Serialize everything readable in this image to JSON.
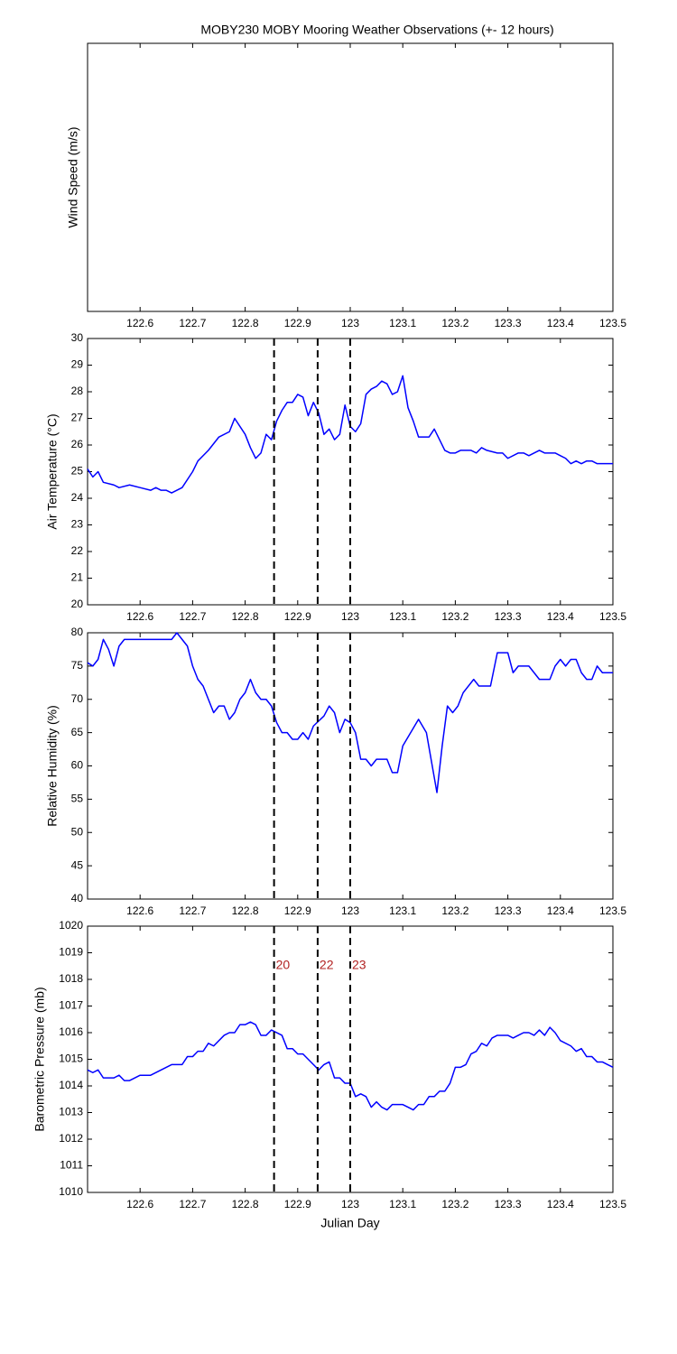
{
  "chart_data": [
    {
      "type": "line",
      "title": "MOBY230 MOBY Mooring Weather Observations (+- 12 hours)",
      "ylabel": "Wind Speed (m/s)",
      "xlim": [
        122.5,
        123.5
      ],
      "xticks": [
        122.6,
        122.7,
        122.8,
        122.9,
        123,
        123.1,
        123.2,
        123.3,
        123.4,
        123.5
      ],
      "series": []
    },
    {
      "type": "line",
      "ylabel": "Air Temperature (°C)",
      "xlim": [
        122.5,
        123.5
      ],
      "xticks": [
        122.6,
        122.7,
        122.8,
        122.9,
        123,
        123.1,
        123.2,
        123.3,
        123.4,
        123.5
      ],
      "ylim": [
        20,
        30
      ],
      "yticks": [
        20,
        21,
        22,
        23,
        24,
        25,
        26,
        27,
        28,
        29,
        30
      ],
      "vlines": [
        122.855,
        122.938,
        123.0
      ],
      "series": [
        {
          "color": "#0000ff",
          "x": [
            122.5,
            122.51,
            122.52,
            122.53,
            122.55,
            122.56,
            122.58,
            122.6,
            122.62,
            122.63,
            122.64,
            122.65,
            122.66,
            122.68,
            122.7,
            122.71,
            122.73,
            122.75,
            122.77,
            122.78,
            122.8,
            122.81,
            122.82,
            122.83,
            122.84,
            122.85,
            122.86,
            122.87,
            122.88,
            122.89,
            122.9,
            122.91,
            122.92,
            122.93,
            122.94,
            122.95,
            122.96,
            122.97,
            122.98,
            122.99,
            123.0,
            123.01,
            123.02,
            123.03,
            123.04,
            123.05,
            123.06,
            123.07,
            123.08,
            123.09,
            123.1,
            123.11,
            123.12,
            123.13,
            123.15,
            123.16,
            123.17,
            123.18,
            123.19,
            123.2,
            123.21,
            123.23,
            123.24,
            123.25,
            123.26,
            123.28,
            123.29,
            123.3,
            123.32,
            123.33,
            123.34,
            123.36,
            123.37,
            123.39,
            123.4,
            123.41,
            123.42,
            123.43,
            123.44,
            123.45,
            123.46,
            123.47,
            123.49,
            123.5
          ],
          "values": [
            25.1,
            24.8,
            25.0,
            24.6,
            24.5,
            24.4,
            24.5,
            24.4,
            24.3,
            24.4,
            24.3,
            24.3,
            24.2,
            24.4,
            25.0,
            25.4,
            25.8,
            26.3,
            26.5,
            27.0,
            26.4,
            25.9,
            25.5,
            25.7,
            26.4,
            26.2,
            26.9,
            27.3,
            27.6,
            27.6,
            27.9,
            27.8,
            27.1,
            27.6,
            27.2,
            26.4,
            26.6,
            26.2,
            26.4,
            27.5,
            26.7,
            26.5,
            26.8,
            27.9,
            28.1,
            28.2,
            28.4,
            28.3,
            27.9,
            28.0,
            28.6,
            27.4,
            26.9,
            26.3,
            26.3,
            26.6,
            26.2,
            25.8,
            25.7,
            25.7,
            25.8,
            25.8,
            25.7,
            25.9,
            25.8,
            25.7,
            25.7,
            25.5,
            25.7,
            25.7,
            25.6,
            25.8,
            25.7,
            25.7,
            25.6,
            25.5,
            25.3,
            25.4,
            25.3,
            25.4,
            25.4,
            25.3,
            25.3,
            25.3
          ]
        }
      ]
    },
    {
      "type": "line",
      "ylabel": "Relative Humidity (%)",
      "xlim": [
        122.5,
        123.5
      ],
      "xticks": [
        122.6,
        122.7,
        122.8,
        122.9,
        123,
        123.1,
        123.2,
        123.3,
        123.4,
        123.5
      ],
      "ylim": [
        40,
        80
      ],
      "yticks": [
        40,
        45,
        50,
        55,
        60,
        65,
        70,
        75,
        80
      ],
      "vlines": [
        122.855,
        122.938,
        123.0
      ],
      "series": [
        {
          "color": "#0000ff",
          "x": [
            122.5,
            122.51,
            122.52,
            122.53,
            122.54,
            122.55,
            122.56,
            122.57,
            122.6,
            122.63,
            122.66,
            122.67,
            122.69,
            122.7,
            122.71,
            122.72,
            122.74,
            122.75,
            122.76,
            122.77,
            122.78,
            122.79,
            122.8,
            122.81,
            122.82,
            122.83,
            122.84,
            122.85,
            122.86,
            122.87,
            122.88,
            122.89,
            122.9,
            122.91,
            122.92,
            122.93,
            122.95,
            122.96,
            122.97,
            122.98,
            122.99,
            123.0,
            123.01,
            123.02,
            123.03,
            123.04,
            123.05,
            123.07,
            123.08,
            123.09,
            123.1,
            123.13,
            123.145,
            123.165,
            123.175,
            123.185,
            123.195,
            123.205,
            123.215,
            123.235,
            123.245,
            123.267,
            123.28,
            123.3,
            123.31,
            123.32,
            123.34,
            123.36,
            123.38,
            123.39,
            123.4,
            123.41,
            123.42,
            123.43,
            123.44,
            123.45,
            123.46,
            123.47,
            123.48,
            123.5
          ],
          "values": [
            75.5,
            75,
            76,
            79,
            77.5,
            75,
            78,
            79,
            79,
            79,
            79,
            80,
            78,
            75,
            73,
            72,
            68,
            69,
            69,
            67,
            68,
            70,
            71,
            73,
            71,
            70,
            70,
            69,
            66.5,
            65,
            65,
            64,
            64,
            65,
            64,
            66,
            67.5,
            69,
            68,
            65,
            67,
            66.5,
            65,
            61,
            61,
            60,
            61,
            61,
            59,
            59,
            63,
            67,
            65,
            56,
            63,
            69,
            68,
            69,
            71,
            73,
            72,
            72,
            77,
            77,
            74,
            75,
            75,
            73,
            73,
            75,
            76,
            75,
            76,
            76,
            74,
            73,
            73,
            75,
            74,
            74
          ]
        }
      ]
    },
    {
      "type": "line",
      "ylabel": "Barometric Pressure (mb)",
      "xlabel": "Julian Day",
      "xlim": [
        122.5,
        123.5
      ],
      "xticks": [
        122.6,
        122.7,
        122.8,
        122.9,
        123,
        123.1,
        123.2,
        123.3,
        123.4,
        123.5
      ],
      "ylim": [
        1010,
        1020
      ],
      "yticks": [
        1010,
        1011,
        1012,
        1013,
        1014,
        1015,
        1016,
        1017,
        1018,
        1019,
        1020
      ],
      "vlines": [
        122.855,
        122.938,
        123.0
      ],
      "vline_labels": [
        "20",
        "22",
        "23"
      ],
      "series": [
        {
          "color": "#0000ff",
          "x": [
            122.5,
            122.51,
            122.52,
            122.53,
            122.55,
            122.56,
            122.57,
            122.58,
            122.6,
            122.62,
            122.64,
            122.66,
            122.68,
            122.69,
            122.7,
            122.71,
            122.72,
            122.73,
            122.74,
            122.76,
            122.77,
            122.78,
            122.79,
            122.8,
            122.81,
            122.82,
            122.83,
            122.84,
            122.85,
            122.87,
            122.88,
            122.89,
            122.9,
            122.91,
            122.93,
            122.94,
            122.95,
            122.96,
            122.97,
            122.98,
            122.99,
            123.0,
            123.01,
            123.02,
            123.03,
            123.04,
            123.05,
            123.06,
            123.07,
            123.08,
            123.1,
            123.11,
            123.12,
            123.13,
            123.14,
            123.15,
            123.16,
            123.17,
            123.18,
            123.19,
            123.2,
            123.21,
            123.22,
            123.23,
            123.24,
            123.25,
            123.26,
            123.27,
            123.28,
            123.3,
            123.31,
            123.32,
            123.33,
            123.34,
            123.35,
            123.36,
            123.37,
            123.38,
            123.39,
            123.4,
            123.42,
            123.43,
            123.44,
            123.45,
            123.46,
            123.47,
            123.48,
            123.49,
            123.5
          ],
          "values": [
            1014.6,
            1014.5,
            1014.6,
            1014.3,
            1014.3,
            1014.4,
            1014.2,
            1014.2,
            1014.4,
            1014.4,
            1014.6,
            1014.8,
            1014.8,
            1015.1,
            1015.1,
            1015.3,
            1015.3,
            1015.6,
            1015.5,
            1015.9,
            1016.0,
            1016.0,
            1016.3,
            1016.3,
            1016.4,
            1016.3,
            1015.9,
            1015.9,
            1016.1,
            1015.9,
            1015.4,
            1015.4,
            1015.2,
            1015.2,
            1014.8,
            1014.6,
            1014.8,
            1014.9,
            1014.3,
            1014.3,
            1014.1,
            1014.1,
            1013.6,
            1013.7,
            1013.6,
            1013.2,
            1013.4,
            1013.2,
            1013.1,
            1013.3,
            1013.3,
            1013.2,
            1013.1,
            1013.3,
            1013.3,
            1013.6,
            1013.6,
            1013.8,
            1013.8,
            1014.1,
            1014.7,
            1014.7,
            1014.8,
            1015.2,
            1015.3,
            1015.6,
            1015.5,
            1015.8,
            1015.9,
            1015.9,
            1015.8,
            1015.9,
            1016.0,
            1016.0,
            1015.9,
            1016.1,
            1015.9,
            1016.2,
            1016.0,
            1015.7,
            1015.5,
            1015.3,
            1015.4,
            1015.1,
            1015.1,
            1014.9,
            1014.9,
            1014.8,
            1014.7
          ]
        }
      ]
    }
  ]
}
